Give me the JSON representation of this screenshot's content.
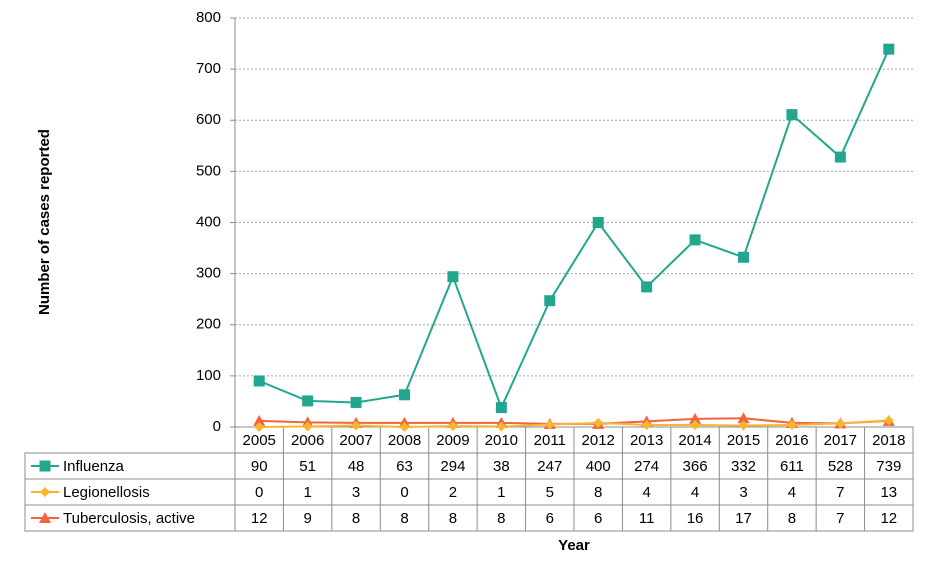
{
  "chart_data": {
    "type": "line",
    "x_label": "Year",
    "y_label": "Number of cases reported",
    "categories": [
      "2005",
      "2006",
      "2007",
      "2008",
      "2009",
      "2010",
      "2011",
      "2012",
      "2013",
      "2014",
      "2015",
      "2016",
      "2017",
      "2018"
    ],
    "series": [
      {
        "name": "Influenza",
        "color": "#23a68f",
        "marker": "square",
        "values": [
          90,
          51,
          48,
          63,
          294,
          38,
          247,
          400,
          274,
          366,
          332,
          611,
          528,
          739
        ]
      },
      {
        "name": "Legionellosis",
        "color": "#f8b630",
        "marker": "diamond",
        "values": [
          0,
          1,
          3,
          0,
          2,
          1,
          5,
          8,
          4,
          4,
          3,
          4,
          7,
          13
        ]
      },
      {
        "name": "Tuberculosis, active",
        "color": "#f0653d",
        "marker": "triangle",
        "values": [
          12,
          9,
          8,
          8,
          8,
          8,
          6,
          6,
          11,
          16,
          17,
          8,
          7,
          12
        ]
      }
    ],
    "ylim": [
      0,
      800
    ],
    "yticks": [
      0,
      100,
      200,
      300,
      400,
      500,
      600,
      700,
      800
    ],
    "grid": true
  }
}
